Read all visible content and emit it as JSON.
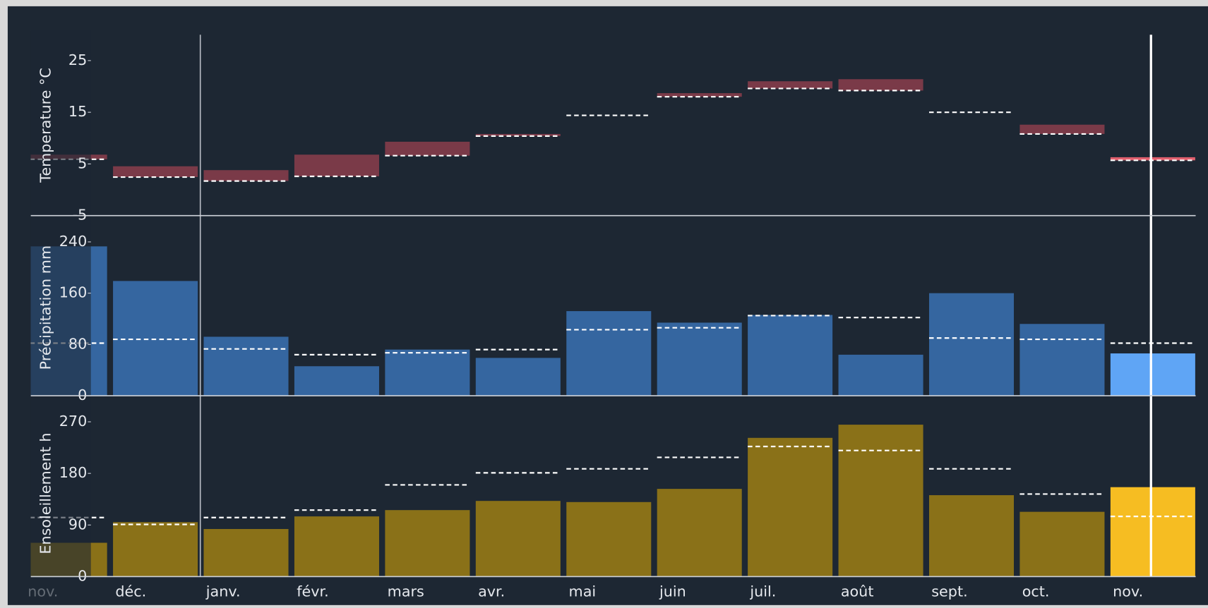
{
  "chart_data": [
    {
      "type": "range",
      "y_label": "Temperature °C",
      "values": [
        6.8,
        4.55,
        3.8,
        6.8,
        9.3,
        10.8,
        14.4,
        18.7,
        21,
        21.4,
        15,
        12.6,
        6.3
      ],
      "normal": [
        5.9,
        2.46,
        1.7,
        2.6,
        6.6,
        10.4,
        14.4,
        18.0,
        19.6,
        19.2,
        15,
        10.8,
        5.7
      ],
      "color": "#7a3a48",
      "highlight_color": "#e0606e",
      "ylim": [
        -5,
        30
      ],
      "yticks": [
        -5,
        5,
        15,
        25
      ]
    },
    {
      "type": "bar",
      "y_label": "Précipitation mm",
      "values": [
        233,
        179,
        92,
        46,
        72,
        59,
        132,
        114,
        126,
        64,
        160,
        112,
        66
      ],
      "normal": [
        82,
        88,
        73,
        64,
        67,
        72,
        103,
        106,
        125,
        122,
        90,
        88,
        82
      ],
      "color": "#3566a0",
      "highlight_color": "#5fa5f5",
      "ylim": [
        0,
        275
      ],
      "yticks": [
        0,
        80,
        160,
        240
      ]
    },
    {
      "type": "bar",
      "y_label": "Ensoleillement h",
      "categories": [
        "nov.",
        "déc.",
        "janv.",
        "févr.",
        "mars",
        "avr.",
        "mai",
        "juin",
        "juil.",
        "août",
        "sept.",
        "oct.",
        "nov."
      ],
      "values": [
        59,
        95,
        83,
        105,
        116,
        132,
        130,
        153,
        242,
        265,
        142,
        113,
        156
      ],
      "normal": [
        103,
        91,
        103,
        116,
        160,
        181,
        188,
        208,
        227,
        220,
        188,
        144,
        105
      ],
      "color": "#8a7118",
      "highlight_color": "#f6bd22",
      "ylim": [
        0,
        290
      ],
      "yticks": [
        0,
        90,
        180,
        270
      ]
    }
  ]
}
